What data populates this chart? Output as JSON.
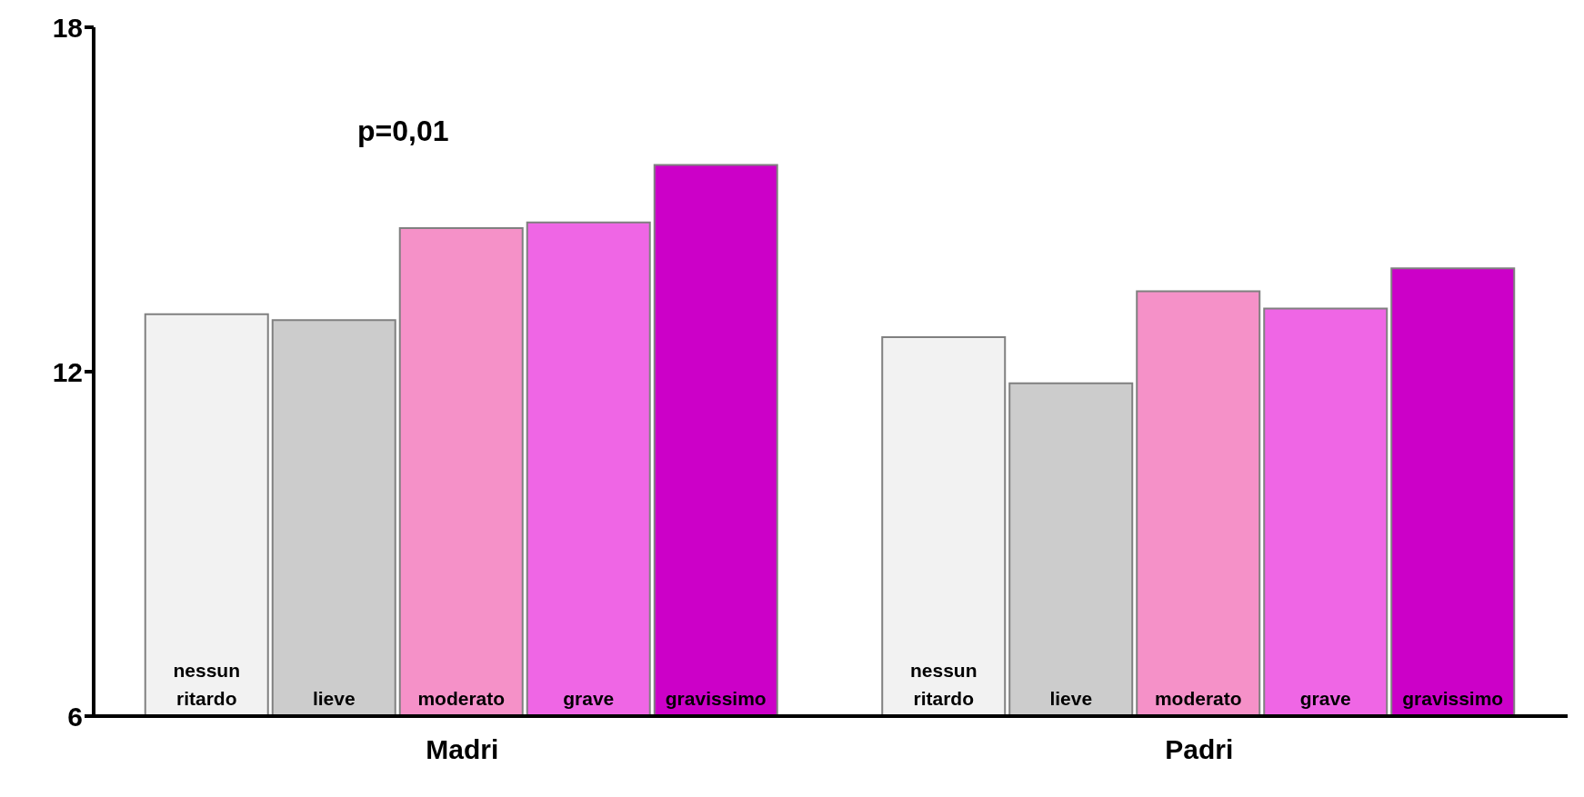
{
  "chart_data": {
    "type": "bar",
    "categories": [
      "Madri",
      "Padri"
    ],
    "series": [
      {
        "name": "nessun ritardo",
        "color": "#f2f2f2",
        "values": [
          13.0,
          12.6
        ]
      },
      {
        "name": "lieve",
        "color": "#cccccc",
        "values": [
          12.9,
          11.8
        ]
      },
      {
        "name": "moderato",
        "color": "#f591c8",
        "values": [
          14.5,
          13.4
        ]
      },
      {
        "name": "grave",
        "color": "#ef66e5",
        "values": [
          14.6,
          13.1
        ]
      },
      {
        "name": "gravissimo",
        "color": "#cc00c8",
        "values": [
          15.6,
          13.8
        ]
      }
    ],
    "ylim": [
      6,
      18
    ],
    "yticks": [
      6,
      12,
      18
    ],
    "grid": false,
    "legend": false,
    "annotations": [
      "p=0,01"
    ]
  }
}
